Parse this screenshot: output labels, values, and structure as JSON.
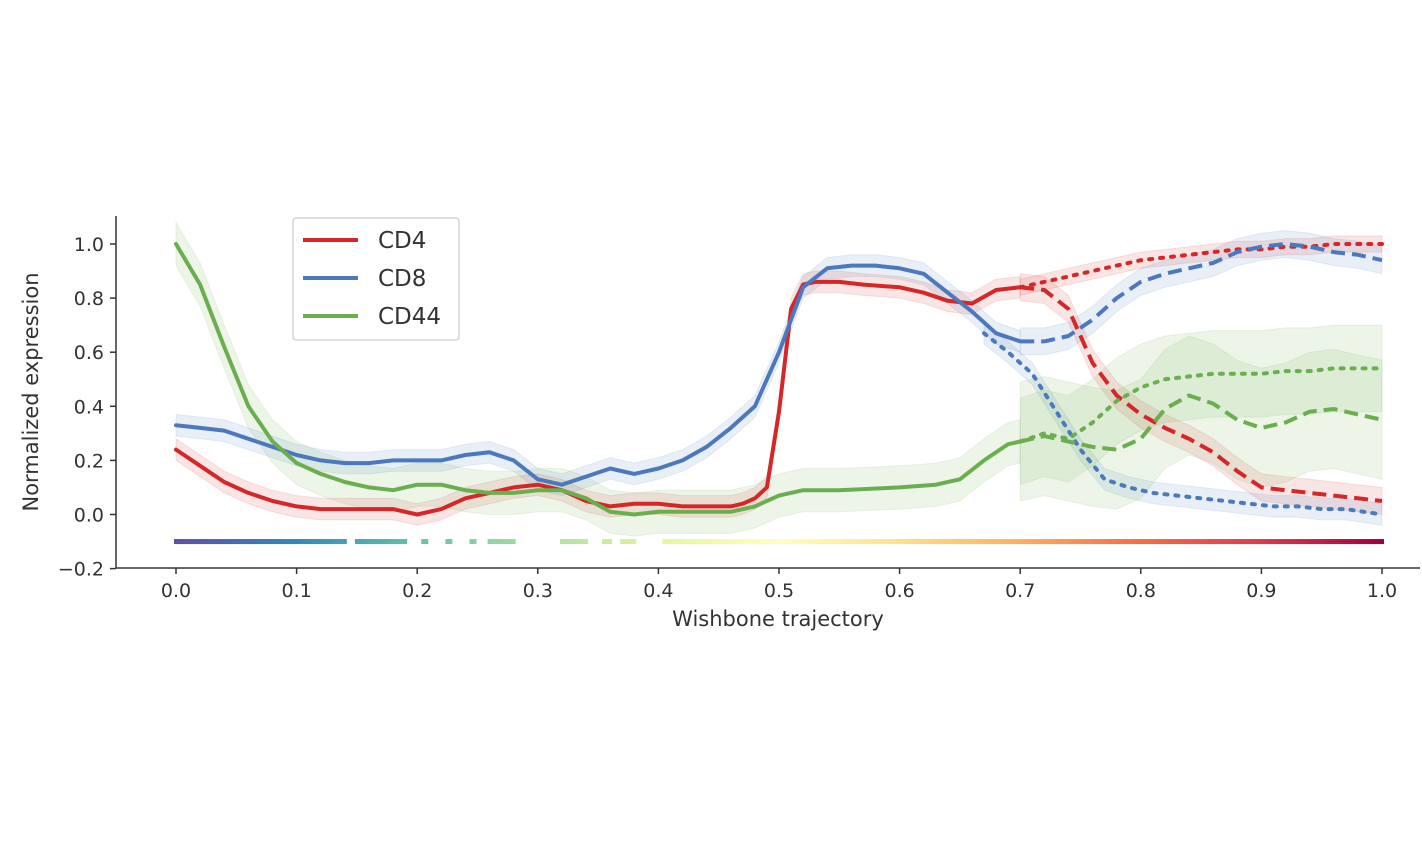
{
  "chart_data": {
    "type": "line",
    "title": "",
    "xlabel": "Wishbone trajectory",
    "ylabel": "Normalized expression",
    "xlim": [
      -0.05,
      1.03
    ],
    "ylim": [
      -0.2,
      1.1
    ],
    "xticks": [
      "0.0",
      "0.1",
      "0.2",
      "0.3",
      "0.4",
      "0.5",
      "0.6",
      "0.7",
      "0.8",
      "0.9",
      "1.0"
    ],
    "yticks": [
      "−0.2",
      "0.0",
      "0.2",
      "0.4",
      "0.6",
      "0.8",
      "1.0"
    ],
    "grid": false,
    "legend_position": "top-left",
    "branch_point": 0.695,
    "series": [
      {
        "name": "CD4",
        "color": "#d62728",
        "trunk": {
          "x": [
            0.0,
            0.02,
            0.04,
            0.06,
            0.08,
            0.1,
            0.12,
            0.14,
            0.16,
            0.18,
            0.2,
            0.22,
            0.24,
            0.26,
            0.28,
            0.3,
            0.31,
            0.32,
            0.34,
            0.36,
            0.38,
            0.4,
            0.42,
            0.44,
            0.46,
            0.47,
            0.48,
            0.49,
            0.5,
            0.51,
            0.52,
            0.53,
            0.55,
            0.57,
            0.6,
            0.62,
            0.64,
            0.66,
            0.68,
            0.7
          ],
          "y": [
            0.24,
            0.18,
            0.12,
            0.08,
            0.05,
            0.03,
            0.02,
            0.02,
            0.02,
            0.02,
            0.0,
            0.02,
            0.06,
            0.08,
            0.1,
            0.11,
            0.1,
            0.09,
            0.05,
            0.03,
            0.04,
            0.04,
            0.03,
            0.03,
            0.03,
            0.04,
            0.06,
            0.1,
            0.38,
            0.76,
            0.85,
            0.86,
            0.86,
            0.85,
            0.84,
            0.82,
            0.79,
            0.78,
            0.83,
            0.84
          ],
          "band": 0.04
        },
        "branch_dashed": {
          "x": [
            0.7,
            0.72,
            0.74,
            0.76,
            0.78,
            0.8,
            0.82,
            0.84,
            0.86,
            0.88,
            0.9,
            0.92,
            0.94,
            0.96,
            0.98,
            1.0
          ],
          "y": [
            0.84,
            0.83,
            0.76,
            0.56,
            0.44,
            0.37,
            0.32,
            0.28,
            0.23,
            0.16,
            0.1,
            0.09,
            0.08,
            0.07,
            0.06,
            0.05
          ],
          "band": 0.05
        },
        "branch_dotted": {
          "x": [
            0.7,
            0.72,
            0.74,
            0.76,
            0.78,
            0.8,
            0.82,
            0.84,
            0.86,
            0.88,
            0.9,
            0.92,
            0.94,
            0.96,
            0.98,
            1.0
          ],
          "y": [
            0.84,
            0.86,
            0.88,
            0.9,
            0.92,
            0.94,
            0.95,
            0.96,
            0.97,
            0.98,
            0.98,
            0.99,
            0.99,
            1.0,
            1.0,
            1.0
          ],
          "band": 0.03
        }
      },
      {
        "name": "CD8",
        "color": "#4c78bd",
        "trunk": {
          "x": [
            0.0,
            0.02,
            0.04,
            0.06,
            0.08,
            0.1,
            0.12,
            0.14,
            0.16,
            0.18,
            0.2,
            0.22,
            0.24,
            0.26,
            0.28,
            0.3,
            0.32,
            0.34,
            0.36,
            0.38,
            0.4,
            0.42,
            0.44,
            0.46,
            0.48,
            0.5,
            0.52,
            0.54,
            0.56,
            0.58,
            0.6,
            0.62,
            0.64,
            0.66,
            0.68,
            0.7
          ],
          "y": [
            0.33,
            0.32,
            0.31,
            0.28,
            0.25,
            0.22,
            0.2,
            0.19,
            0.19,
            0.2,
            0.2,
            0.2,
            0.22,
            0.23,
            0.2,
            0.13,
            0.11,
            0.14,
            0.17,
            0.15,
            0.17,
            0.2,
            0.25,
            0.32,
            0.4,
            0.6,
            0.84,
            0.91,
            0.92,
            0.92,
            0.91,
            0.89,
            0.82,
            0.75,
            0.67,
            0.64
          ],
          "band": 0.04
        },
        "branch_dashed": {
          "x": [
            0.7,
            0.72,
            0.74,
            0.76,
            0.78,
            0.8,
            0.82,
            0.84,
            0.86,
            0.88,
            0.9,
            0.92,
            0.94,
            0.96,
            0.98,
            1.0
          ],
          "y": [
            0.64,
            0.64,
            0.66,
            0.72,
            0.8,
            0.86,
            0.89,
            0.91,
            0.93,
            0.97,
            0.99,
            1.0,
            0.99,
            0.97,
            0.96,
            0.94
          ],
          "band": 0.05
        },
        "branch_dotted": {
          "x": [
            0.67,
            0.69,
            0.71,
            0.73,
            0.75,
            0.77,
            0.79,
            0.81,
            0.83,
            0.85,
            0.87,
            0.89,
            0.91,
            0.93,
            0.95,
            0.97,
            1.0
          ],
          "y": [
            0.67,
            0.6,
            0.52,
            0.38,
            0.24,
            0.13,
            0.1,
            0.08,
            0.07,
            0.06,
            0.05,
            0.04,
            0.03,
            0.03,
            0.02,
            0.02,
            0.0
          ],
          "band": 0.04
        }
      },
      {
        "name": "CD44",
        "color": "#6aaf4e",
        "trunk": {
          "x": [
            0.0,
            0.02,
            0.04,
            0.06,
            0.08,
            0.1,
            0.12,
            0.14,
            0.16,
            0.18,
            0.2,
            0.22,
            0.24,
            0.26,
            0.28,
            0.3,
            0.32,
            0.34,
            0.36,
            0.38,
            0.4,
            0.42,
            0.44,
            0.46,
            0.48,
            0.5,
            0.52,
            0.55,
            0.6,
            0.63,
            0.65,
            0.67,
            0.69,
            0.7
          ],
          "y": [
            1.0,
            0.85,
            0.62,
            0.4,
            0.27,
            0.19,
            0.15,
            0.12,
            0.1,
            0.09,
            0.11,
            0.11,
            0.09,
            0.08,
            0.08,
            0.09,
            0.09,
            0.06,
            0.01,
            0.0,
            0.01,
            0.01,
            0.01,
            0.01,
            0.03,
            0.07,
            0.09,
            0.09,
            0.1,
            0.11,
            0.13,
            0.2,
            0.26,
            0.27
          ],
          "band": 0.08
        },
        "branch_dashed": {
          "x": [
            0.7,
            0.72,
            0.74,
            0.76,
            0.78,
            0.8,
            0.82,
            0.84,
            0.86,
            0.88,
            0.9,
            0.92,
            0.94,
            0.96,
            0.98,
            1.0
          ],
          "y": [
            0.27,
            0.29,
            0.27,
            0.25,
            0.24,
            0.28,
            0.39,
            0.44,
            0.41,
            0.35,
            0.32,
            0.34,
            0.38,
            0.39,
            0.37,
            0.35
          ],
          "band": 0.22
        },
        "branch_dotted": {
          "x": [
            0.7,
            0.72,
            0.74,
            0.76,
            0.78,
            0.8,
            0.82,
            0.84,
            0.86,
            0.88,
            0.9,
            0.92,
            0.94,
            0.96,
            0.98,
            1.0
          ],
          "y": [
            0.27,
            0.3,
            0.28,
            0.34,
            0.42,
            0.47,
            0.5,
            0.51,
            0.52,
            0.52,
            0.52,
            0.53,
            0.53,
            0.54,
            0.54,
            0.54
          ],
          "band": 0.16
        }
      }
    ],
    "trajectory_strip": {
      "y": -0.1,
      "colormap": [
        "#5e4fa2",
        "#3288bd",
        "#66c2a5",
        "#abdda4",
        "#e6f598",
        "#ffffbf",
        "#fee08b",
        "#fdae61",
        "#f46d43",
        "#d53e4f",
        "#9e0142"
      ],
      "segments": [
        [
          0.0,
          0.14
        ],
        [
          0.15,
          0.19
        ],
        [
          0.205,
          0.209
        ],
        [
          0.225,
          0.229
        ],
        [
          0.245,
          0.249
        ],
        [
          0.26,
          0.28
        ],
        [
          0.32,
          0.34
        ],
        [
          0.355,
          0.36
        ],
        [
          0.37,
          0.38
        ],
        [
          0.405,
          1.0
        ]
      ]
    }
  }
}
